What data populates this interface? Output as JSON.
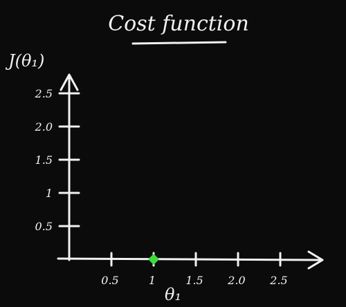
{
  "colors": {
    "background": "#0b0b0b",
    "ink": "#f2f2f2",
    "point": "#3ddc3d"
  },
  "chart_data": {
    "type": "scatter",
    "title": "Cost function",
    "xlabel": "θ₁",
    "ylabel": "J(θ₁)",
    "xlim": [
      0,
      3
    ],
    "ylim": [
      0,
      2.7
    ],
    "x_ticks": [
      {
        "value": 0.5,
        "label": "0.5"
      },
      {
        "value": 1,
        "label": "1"
      },
      {
        "value": 1.5,
        "label": "1.5"
      },
      {
        "value": 2,
        "label": "2.0"
      },
      {
        "value": 2.5,
        "label": "2.5"
      }
    ],
    "y_ticks": [
      {
        "value": 0.5,
        "label": "0.5"
      },
      {
        "value": 1,
        "label": "1"
      },
      {
        "value": 1.5,
        "label": "1.5"
      },
      {
        "value": 2,
        "label": "2.0"
      },
      {
        "value": 2.5,
        "label": "2.5"
      }
    ],
    "points": [
      {
        "x": 1,
        "y": 0
      }
    ],
    "grid": false,
    "legend": "none"
  }
}
